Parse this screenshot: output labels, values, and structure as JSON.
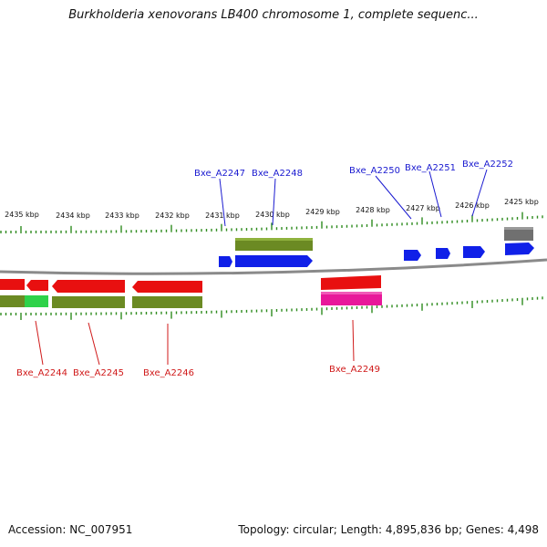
{
  "title": "Burkholderia xenovorans LB400 chromosome 1, complete sequenc...",
  "footer": {
    "accession": "Accession: NC_007951",
    "summary": "Topology: circular; Length: 4,895,836 bp; Genes: 4,498"
  },
  "colors": {
    "background": "#ffffff",
    "backbone": "#8a8a8a",
    "tick": "#2e8b1e",
    "gene_red": "#e81010",
    "gene_blue": "#1020e8",
    "gene_olive": "#6b8a23",
    "gene_green": "#2ed24a",
    "gene_pink": "#e8189a",
    "gene_gray": "#707070",
    "label_blue": "#1a1ad0",
    "label_red": "#d01a1a"
  },
  "scale_labels": [
    "2435 kbp",
    "2434 kbp",
    "2433 kbp",
    "2432 kbp",
    "2431 kbp",
    "2430 kbp",
    "2429 kbp",
    "2428 kbp",
    "2427 kbp",
    "2426 kbp",
    "2425 kbp"
  ],
  "top_gene_labels": [
    "Bxe_A2247",
    "Bxe_A2248",
    "Bxe_A2250",
    "Bxe_A2251",
    "Bxe_A2252"
  ],
  "bottom_gene_labels": [
    "Bxe_A2244",
    "Bxe_A2245",
    "Bxe_A2246",
    "Bxe_A2249"
  ]
}
